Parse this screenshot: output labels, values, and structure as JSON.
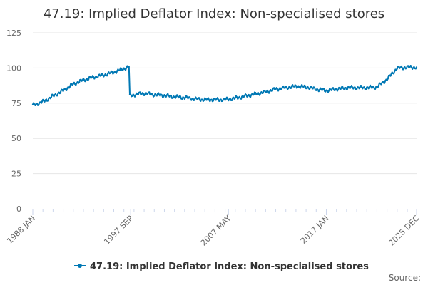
{
  "chart_data": {
    "type": "line",
    "title": "47.19: Implied Deflator Index: Non-specialised stores",
    "xlabel": "",
    "ylabel": "",
    "ylim": [
      0,
      125
    ],
    "y_ticks": [
      0,
      25,
      50,
      75,
      100,
      125
    ],
    "x_tick_labels": [
      "1988 JAN",
      "1997 SEP",
      "2007 MAY",
      "2017 JAN",
      "2025 DEC"
    ],
    "x_tick_indices": [
      0,
      116,
      232,
      348,
      455
    ],
    "grid": true,
    "legend_position": "bottom-center",
    "series": [
      {
        "name": "47.19: Implied Deflator Index: Non-specialised stores",
        "color": "#0078b4",
        "anchors": [
          [
            0,
            73.5
          ],
          [
            12,
            76
          ],
          [
            24,
            80
          ],
          [
            36,
            84
          ],
          [
            48,
            88.5
          ],
          [
            60,
            91.5
          ],
          [
            72,
            93.5
          ],
          [
            84,
            95
          ],
          [
            96,
            97
          ],
          [
            108,
            99.5
          ],
          [
            114,
            101
          ],
          [
            115,
            80
          ],
          [
            120,
            81
          ],
          [
            132,
            82
          ],
          [
            144,
            81
          ],
          [
            156,
            80.5
          ],
          [
            168,
            79.5
          ],
          [
            180,
            79
          ],
          [
            192,
            78
          ],
          [
            204,
            77.5
          ],
          [
            216,
            77.5
          ],
          [
            228,
            77.5
          ],
          [
            240,
            78.5
          ],
          [
            252,
            80
          ],
          [
            264,
            81.5
          ],
          [
            276,
            83
          ],
          [
            288,
            85
          ],
          [
            300,
            86
          ],
          [
            312,
            87
          ],
          [
            324,
            86.5
          ],
          [
            336,
            85
          ],
          [
            348,
            84
          ],
          [
            360,
            85
          ],
          [
            372,
            86
          ],
          [
            384,
            86
          ],
          [
            396,
            86
          ],
          [
            408,
            86.5
          ],
          [
            420,
            92
          ],
          [
            432,
            100
          ],
          [
            444,
            100.5
          ],
          [
            455,
            100.5
          ]
        ]
      }
    ],
    "credits": "Source:"
  }
}
